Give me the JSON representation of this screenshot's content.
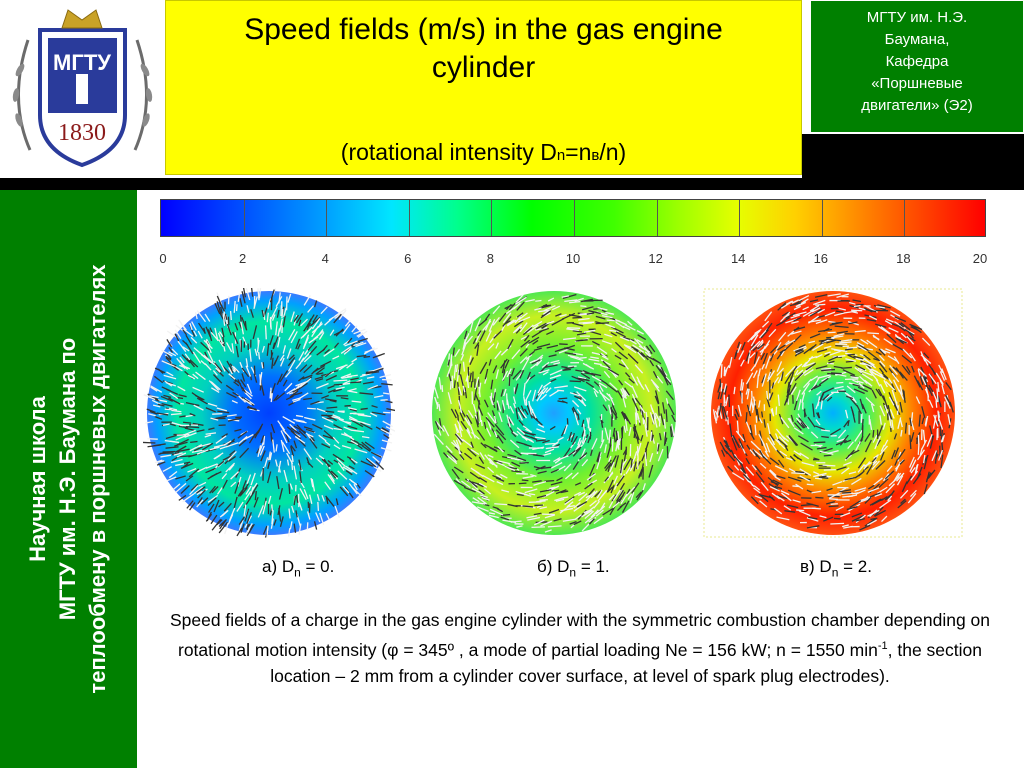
{
  "header": {
    "title": "Speed fields (m/s) in the gas engine cylinder",
    "subtitle_prefix": "(rotational intensity D",
    "subtitle_sub": "n",
    "subtitle_mid": "=n",
    "subtitle_sub2": "в",
    "subtitle_suffix": "/n)",
    "logo_year": "1830",
    "logo_text": "МГТУ"
  },
  "department": {
    "line1": "МГТУ им. Н.Э.",
    "line2": "Баумана,",
    "line3": "Кафедра",
    "line4": "«Поршневые",
    "line5": "двигатели» (Э2)"
  },
  "side_panel": {
    "line1": "Научная школа",
    "line2": "МГТУ им. Н.Э. Баумана  по",
    "line3": "теплообмену в поршневых двигателях"
  },
  "colorbar": {
    "ticks": [
      "0",
      "2",
      "4",
      "6",
      "8",
      "10",
      "12",
      "14",
      "16",
      "18",
      "20"
    ]
  },
  "panels": [
    {
      "prefix": "а) D",
      "sub": "n",
      "suffix": " = 0."
    },
    {
      "prefix": "б) D",
      "sub": "n",
      "suffix": " = 1."
    },
    {
      "prefix": "в) D",
      "sub": "n",
      "suffix": " = 2."
    }
  ],
  "caption": {
    "part1": "Speed fields of a charge in the gas engine cylinder with the symmetric combustion chamber depending on rotational motion intensity (φ = 345º , a mode of partial loading Ne = 156 kW; n = 1550 min",
    "sup": "-1",
    "part2": ", the section location – 2 mm from a cylinder cover surface, at level of spark plug electrodes)."
  },
  "colors": {
    "title_bg": "#ffff00",
    "panel_green": "#008000",
    "band_black": "#000000"
  }
}
